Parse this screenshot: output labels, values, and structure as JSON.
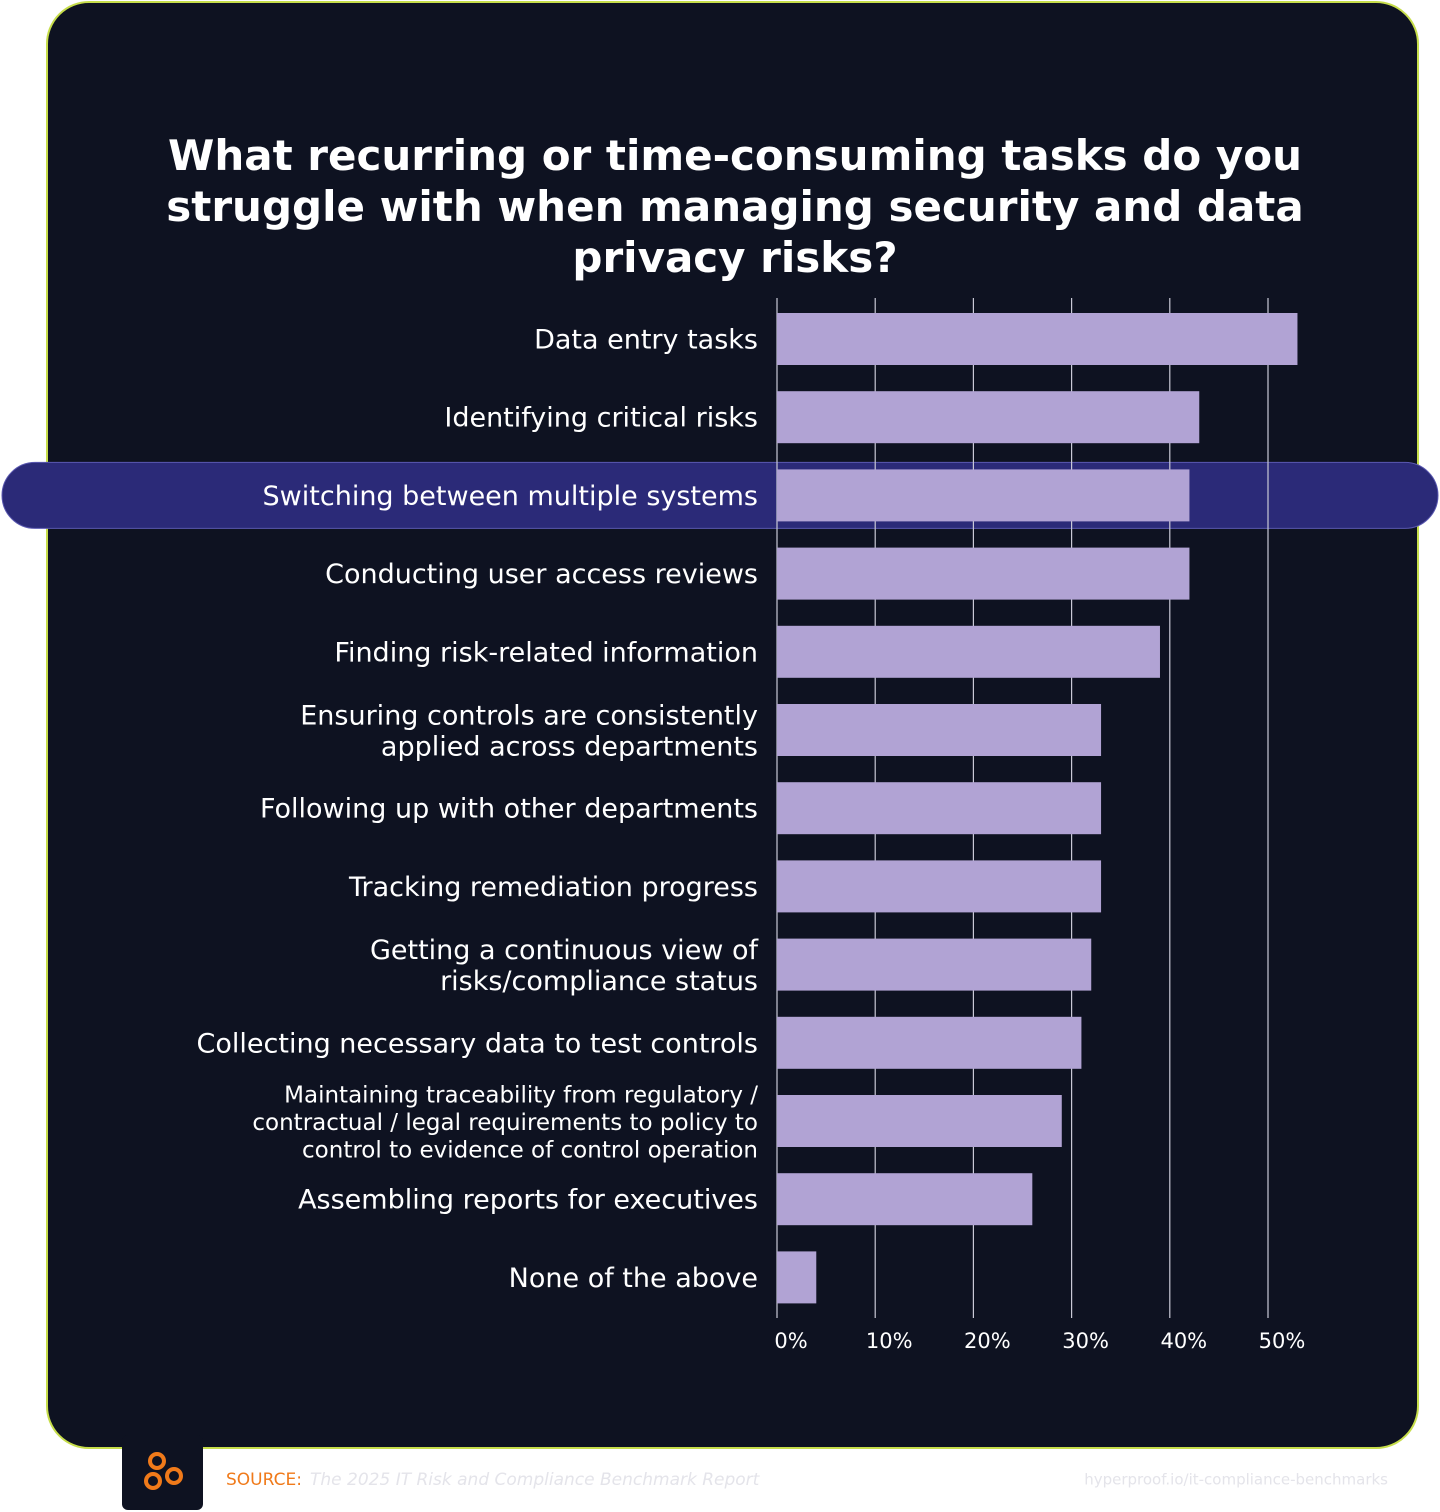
{
  "chart_data": {
    "type": "hbar",
    "title": "What recurring or time-consuming tasks do you\nstruggle with when managing security and data\nprivacy risks?",
    "categories": [
      "Data entry tasks",
      "Identifying critical risks",
      "Switching between multiple systems",
      "Conducting user access reviews",
      "Finding risk-related information",
      "Ensuring controls are consistently\napplied across departments",
      "Following up with other departments",
      "Tracking remediation progress",
      "Getting a continuous view of\nrisks/compliance status",
      "Collecting necessary data to test controls",
      "Maintaining traceability from regulatory /\ncontractual / legal requirements to policy to\ncontrol to evidence of control operation",
      "Assembling reports for executives",
      "None of the above"
    ],
    "values": [
      53,
      43,
      42,
      42,
      39,
      33,
      33,
      33,
      32,
      31,
      29,
      26,
      4
    ],
    "color": "#b1a3d4",
    "highlight": 2,
    "highlight_color": "#2b2a78",
    "xlim": [
      0,
      50
    ],
    "xticks": [
      {
        "value": 0,
        "label": "0%"
      },
      {
        "value": 10,
        "label": "10%"
      },
      {
        "value": 20,
        "label": "20%"
      },
      {
        "value": 30,
        "label": "30%"
      },
      {
        "value": 40,
        "label": "40%"
      },
      {
        "value": 50,
        "label": "50%"
      }
    ],
    "grid": true,
    "source_label": "SOURCE:",
    "source": "The 2025 IT Risk and Compliance Benchmark Report",
    "url": "hyperproof.io/it-compliance-benchmarks"
  }
}
